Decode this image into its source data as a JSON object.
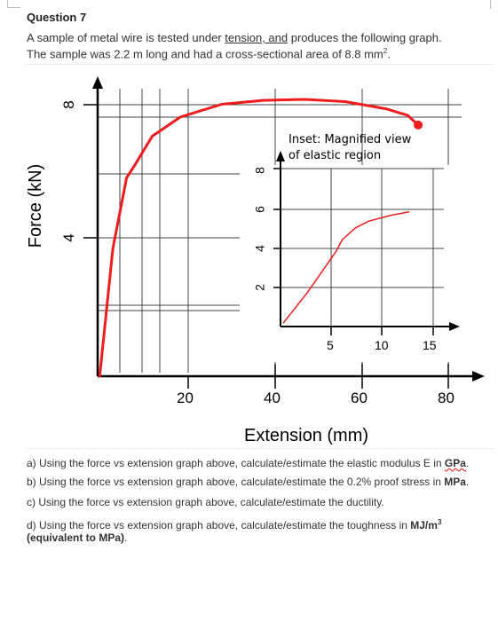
{
  "question": {
    "title": "Question 7",
    "intro_line1_pre": "A sample of metal wire is tested under ",
    "intro_line1_underlined": "tension, and",
    "intro_line1_post": " produces the following graph.",
    "intro_line2": "The sample was 2.2 m long and had a cross-sectional area of 8.8 mm",
    "intro_line2_sup": "2",
    "intro_line2_end": "."
  },
  "chart_data": [
    {
      "type": "line",
      "xlabel": "Extension (mm)",
      "ylabel": "Force (kN)",
      "x_ticks": [
        "20",
        "40",
        "60",
        "80"
      ],
      "y_ticks": [
        "4",
        "8"
      ],
      "xlim": [
        0,
        88
      ],
      "ylim": [
        0,
        9.4
      ],
      "grid": true,
      "series": [
        {
          "color": "#ee1c1c",
          "x": [
            0.5,
            3.7,
            7.0,
            9.0,
            13.2,
            20.0,
            30.0,
            40.0,
            50.0,
            60.0,
            70.0,
            75.0,
            77.5
          ],
          "y": [
            0.0,
            4.0,
            6.2,
            6.6,
            7.5,
            8.1,
            8.5,
            8.62,
            8.65,
            8.58,
            8.35,
            8.15,
            7.85
          ]
        }
      ],
      "end_marker": {
        "x": 77.5,
        "y": 7.85
      }
    },
    {
      "type": "line",
      "title_line1": "Inset: Magnified view",
      "title_line2": "of elastic region",
      "x_ticks": [
        "5",
        "10",
        "15"
      ],
      "y_ticks": [
        "2",
        "4",
        "6",
        "8"
      ],
      "xlim": [
        0,
        18.5
      ],
      "ylim": [
        0,
        9.6
      ],
      "grid": true,
      "series": [
        {
          "color": "#ee1c1c",
          "x": [
            0.3,
            3.0,
            6.3,
            7.0,
            8.5,
            10.0,
            12.5,
            14.6
          ],
          "y": [
            0.2,
            2.0,
            4.5,
            5.2,
            5.9,
            6.3,
            6.65,
            6.85
          ]
        }
      ]
    }
  ],
  "parts": {
    "a_pre": "a) Using the force vs extension graph above, calculate/estimate the elastic modulus E in ",
    "a_unit": "GPa",
    "a_end": ".",
    "b_pre": "b) Using the force vs extension graph above, calculate/estimate the 0.2% proof stress in ",
    "b_unit": "MPa",
    "b_end": ".",
    "c_text": "c) Using the force vs extension graph above, calculate/estimate the ductility.",
    "d_pre": "d) Using the force vs extension graph above, calculate/estimate the toughness in ",
    "d_unit": "MJ/m",
    "d_sup": "3",
    "d_paren": " (equivalent to MPa)",
    "d_end": "."
  }
}
